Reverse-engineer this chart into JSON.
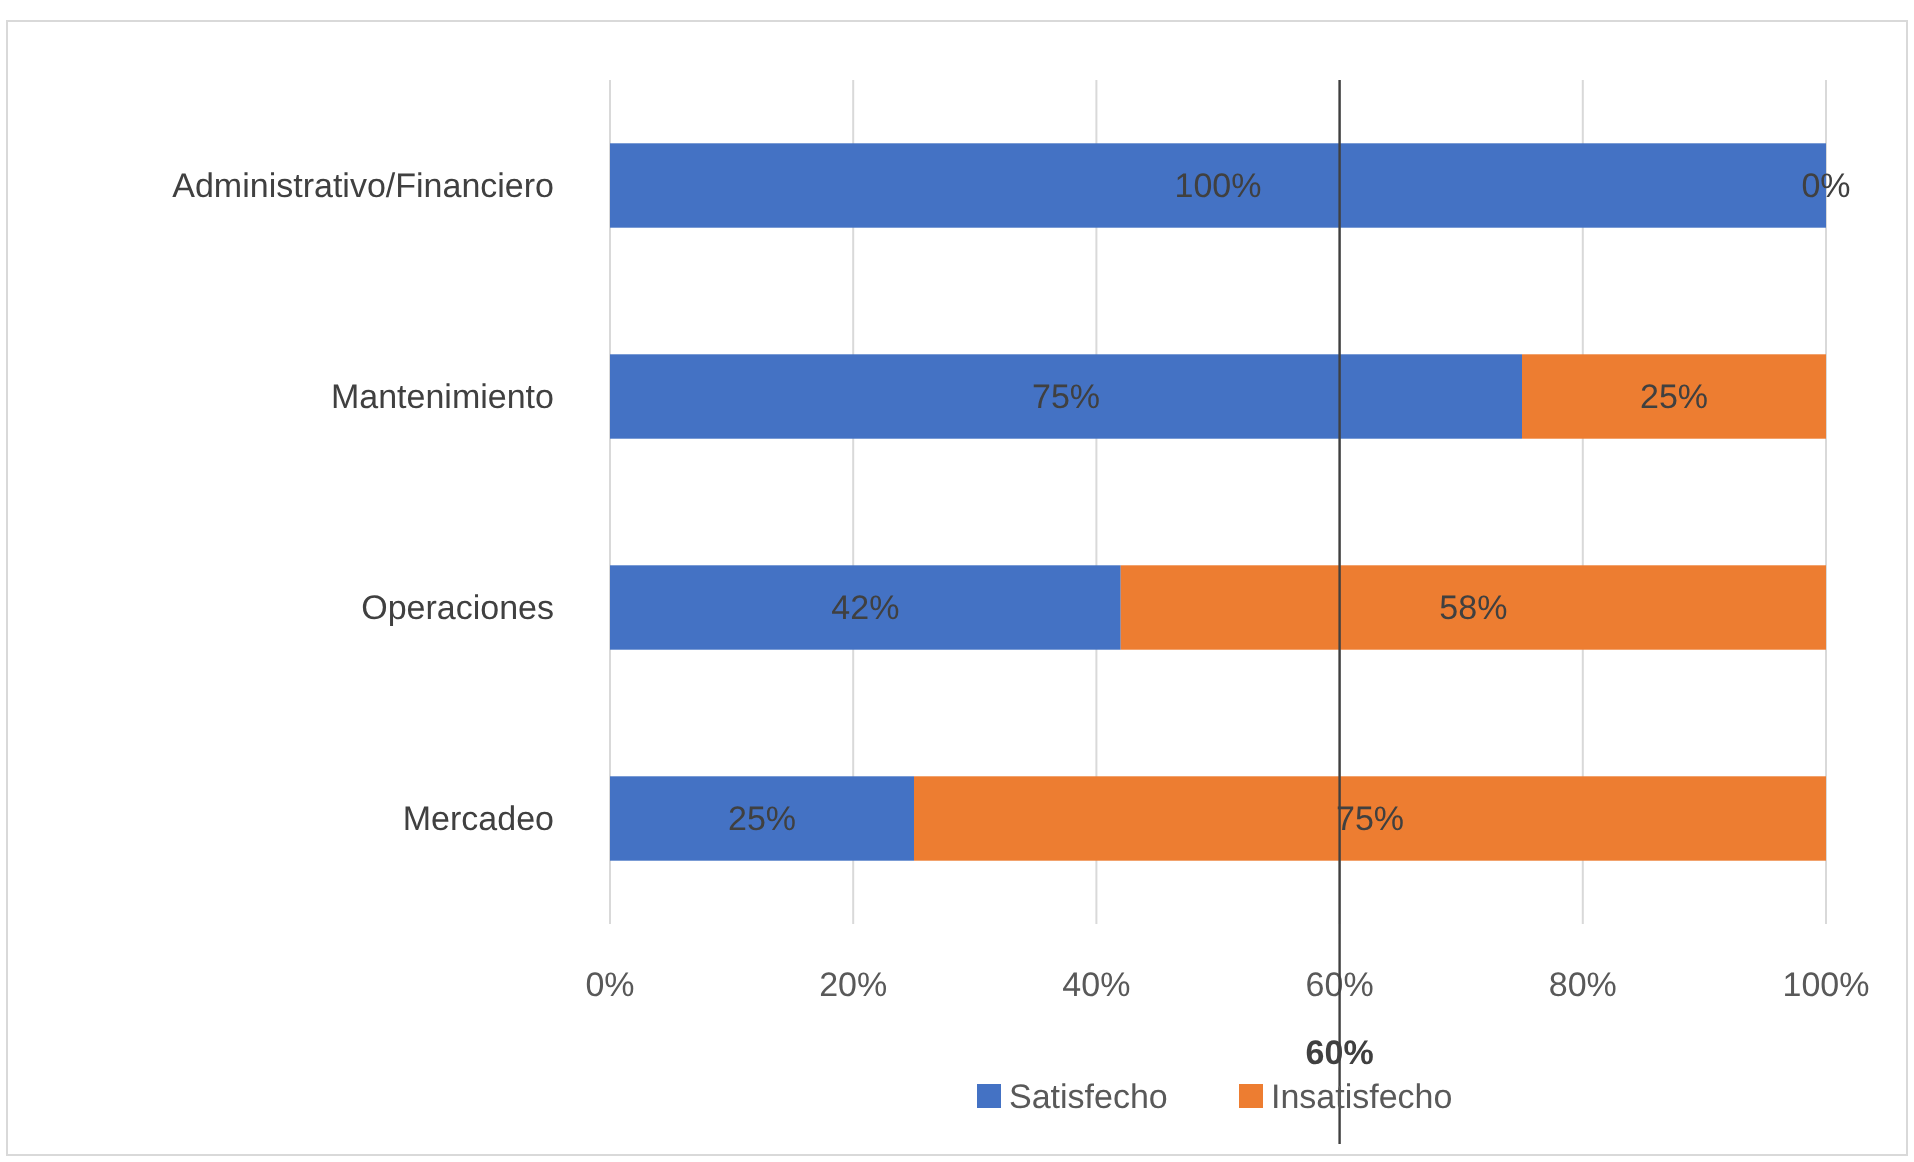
{
  "chart_data": {
    "type": "bar",
    "orientation": "horizontal",
    "stacked": true,
    "categories": [
      "Administrativo/Financiero",
      "Mantenimiento",
      "Operaciones",
      "Mercadeo"
    ],
    "series": [
      {
        "name": "Satisfecho",
        "color": "#4472c4",
        "values": [
          100,
          75,
          42,
          25
        ],
        "value_labels": [
          "100%",
          "75%",
          "42%",
          "25%"
        ]
      },
      {
        "name": "Insatisfecho",
        "color": "#ed7d31",
        "values": [
          0,
          25,
          58,
          75
        ],
        "value_labels": [
          "0%",
          "25%",
          "58%",
          "75%"
        ]
      }
    ],
    "xlim": [
      0,
      100
    ],
    "xticks": [
      {
        "value": 0,
        "label": "0%"
      },
      {
        "value": 20,
        "label": "20%"
      },
      {
        "value": 40,
        "label": "40%"
      },
      {
        "value": 60,
        "label": "60%"
      },
      {
        "value": 80,
        "label": "80%"
      },
      {
        "value": 100,
        "label": "100%"
      }
    ],
    "ref_lines": [
      {
        "axis": "x",
        "value": 60,
        "label": "60%",
        "color": "#404040"
      }
    ],
    "grid": "x",
    "legend": "bottom"
  }
}
